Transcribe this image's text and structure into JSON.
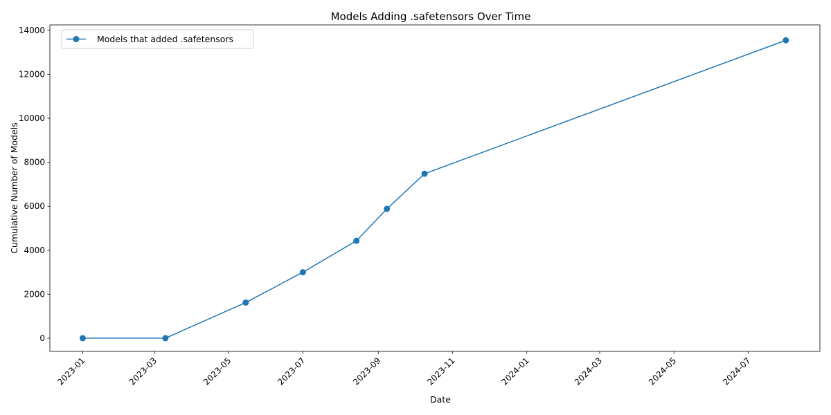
{
  "chart_data": {
    "type": "line",
    "title": "Models Adding .safetensors Over Time",
    "xlabel": "Date",
    "ylabel": "Cumulative Number of Models",
    "x_tick_labels": [
      "2023-01",
      "2023-03",
      "2023-05",
      "2023-07",
      "2023-09",
      "2023-11",
      "2024-01",
      "2024-03",
      "2024-05",
      "2024-07"
    ],
    "y_tick_labels": [
      "0",
      "2000",
      "4000",
      "6000",
      "8000",
      "10000",
      "12000",
      "14000"
    ],
    "ylim": [
      -600,
      14250
    ],
    "xlim": [
      "2022-12-05",
      "2024-08-29"
    ],
    "grid": false,
    "legend_position": "upper-left",
    "series": [
      {
        "name": "Models that added .safetensors",
        "color": "#1f77b4",
        "marker": "circle",
        "x": [
          "2023-01-01",
          "2023-03-10",
          "2023-05-15",
          "2023-07-01",
          "2023-08-14",
          "2023-09-08",
          "2023-10-09",
          "2024-08-01"
        ],
        "y": [
          0,
          0,
          1620,
          3000,
          4430,
          5880,
          7480,
          13550
        ]
      }
    ]
  }
}
